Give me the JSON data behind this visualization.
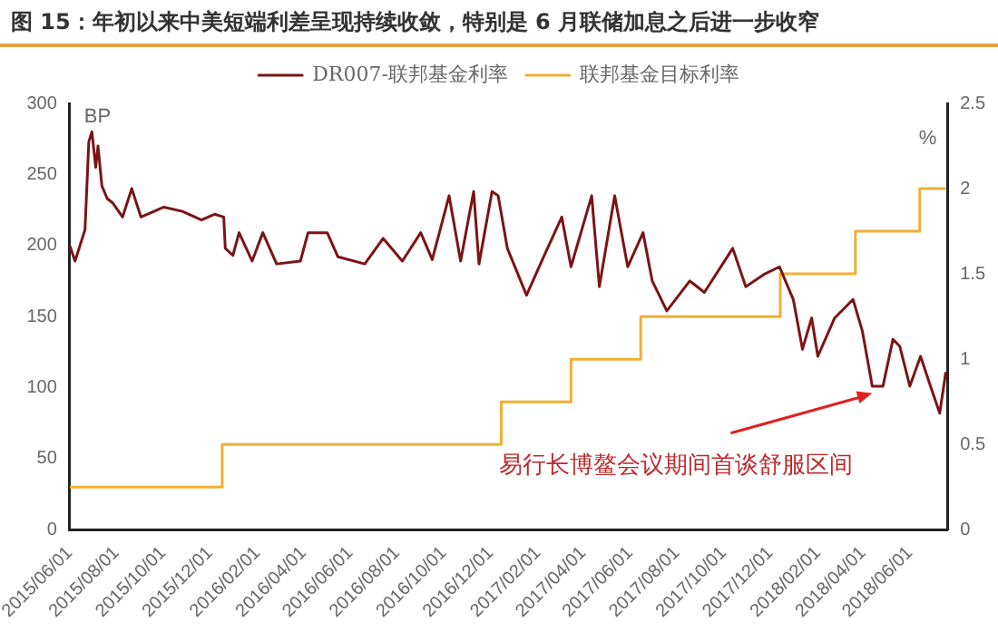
{
  "chart_data": {
    "type": "line",
    "title": "图 15：年初以来中美短端利差呈现持续收敛，特别是 6 月联储加息之后进一步收窄",
    "ylabel": "BP",
    "y2label": "%",
    "xlim": [
      "2015-06-01",
      "2018-07-20"
    ],
    "xticks": [
      {
        "value": "2015-06-01",
        "label": "2015/06/01"
      },
      {
        "value": "2015-08-01",
        "label": "2015/08/01"
      },
      {
        "value": "2015-10-01",
        "label": "2015/10/01"
      },
      {
        "value": "2015-12-01",
        "label": "2015/12/01"
      },
      {
        "value": "2016-02-01",
        "label": "2016/02/01"
      },
      {
        "value": "2016-04-01",
        "label": "2016/04/01"
      },
      {
        "value": "2016-06-01",
        "label": "2016/06/01"
      },
      {
        "value": "2016-08-01",
        "label": "2016/08/01"
      },
      {
        "value": "2016-10-01",
        "label": "2016/10/01"
      },
      {
        "value": "2016-12-01",
        "label": "2016/12/01"
      },
      {
        "value": "2017-02-01",
        "label": "2017/02/01"
      },
      {
        "value": "2017-04-01",
        "label": "2017/04/01"
      },
      {
        "value": "2017-06-01",
        "label": "2017/06/01"
      },
      {
        "value": "2017-08-01",
        "label": "2017/08/01"
      },
      {
        "value": "2017-10-01",
        "label": "2017/10/01"
      },
      {
        "value": "2017-12-01",
        "label": "2017/12/01"
      },
      {
        "value": "2018-02-01",
        "label": "2018/02/01"
      },
      {
        "value": "2018-04-01",
        "label": "2018/04/01"
      },
      {
        "value": "2018-06-01",
        "label": "2018/06/01"
      }
    ],
    "ylim": [
      0,
      300
    ],
    "yticks": [
      0,
      50,
      100,
      150,
      200,
      250,
      300
    ],
    "y2lim": [
      0,
      2.5
    ],
    "y2ticks": [
      0,
      0.5,
      1,
      1.5,
      2,
      2.5
    ],
    "legend": "top",
    "grid": false,
    "marker": "none",
    "annotations": [
      {
        "text": "易行长博鳌会议期间首谈舒服区间",
        "x": "2018-04-13",
        "y": 96
      }
    ],
    "series": [
      {
        "name": "DR007-联邦基金利率",
        "color": "#7b1416",
        "type": "line",
        "x": [
          "2015-06-01",
          "2015-06-08",
          "2015-06-21",
          "2015-06-26",
          "2015-06-30",
          "2015-07-05",
          "2015-07-08",
          "2015-07-13",
          "2015-07-20",
          "2015-07-27",
          "2015-08-09",
          "2015-08-21",
          "2015-09-02",
          "2015-10-02",
          "2015-10-26",
          "2015-11-20",
          "2015-12-07",
          "2015-12-19",
          "2015-12-21",
          "2015-12-31",
          "2016-01-08",
          "2016-01-25",
          "2016-02-08",
          "2016-02-26",
          "2016-03-28",
          "2016-04-07",
          "2016-05-02",
          "2016-05-16",
          "2016-06-20",
          "2016-07-14",
          "2016-08-08",
          "2016-09-01",
          "2016-09-16",
          "2016-10-08",
          "2016-10-23",
          "2016-11-09",
          "2016-11-16",
          "2016-12-03",
          "2016-12-11",
          "2016-12-23",
          "2017-01-17",
          "2017-02-10",
          "2017-03-04",
          "2017-03-16",
          "2017-04-12",
          "2017-04-22",
          "2017-05-12",
          "2017-05-29",
          "2017-06-18",
          "2017-06-30",
          "2017-07-19",
          "2017-08-18",
          "2017-09-06",
          "2017-10-13",
          "2017-10-30",
          "2017-11-24",
          "2017-12-13",
          "2017-12-31",
          "2018-01-12",
          "2018-01-24",
          "2018-02-01",
          "2018-02-23",
          "2018-03-19",
          "2018-03-31",
          "2018-04-13",
          "2018-04-27",
          "2018-05-10",
          "2018-05-19",
          "2018-06-01",
          "2018-06-15",
          "2018-06-28",
          "2018-07-10",
          "2018-07-18"
        ],
        "values": [
          200,
          189,
          211,
          273,
          280,
          255,
          270,
          242,
          233,
          230,
          220,
          240,
          220,
          227,
          224,
          218,
          222,
          220,
          198,
          193,
          209,
          189,
          209,
          187,
          189,
          209,
          209,
          192,
          187,
          205,
          189,
          209,
          190,
          235,
          189,
          238,
          187,
          238,
          235,
          198,
          165,
          194,
          220,
          185,
          235,
          171,
          235,
          185,
          209,
          175,
          154,
          175,
          167,
          198,
          171,
          180,
          185,
          162,
          127,
          149,
          122,
          149,
          162,
          140,
          101,
          101,
          134,
          129,
          101,
          122,
          101,
          82,
          111
        ]
      },
      {
        "name": "联邦基金目标利率",
        "color": "#f0b030",
        "type": "step",
        "axis": "y2",
        "x": [
          "2015-06-01",
          "2015-12-17",
          "2016-12-15",
          "2017-03-16",
          "2017-06-15",
          "2017-12-14",
          "2018-03-22",
          "2018-06-14",
          "2018-07-18"
        ],
        "values": [
          0.25,
          0.5,
          0.75,
          1,
          1.25,
          1.5,
          1.75,
          2,
          2
        ]
      }
    ]
  }
}
